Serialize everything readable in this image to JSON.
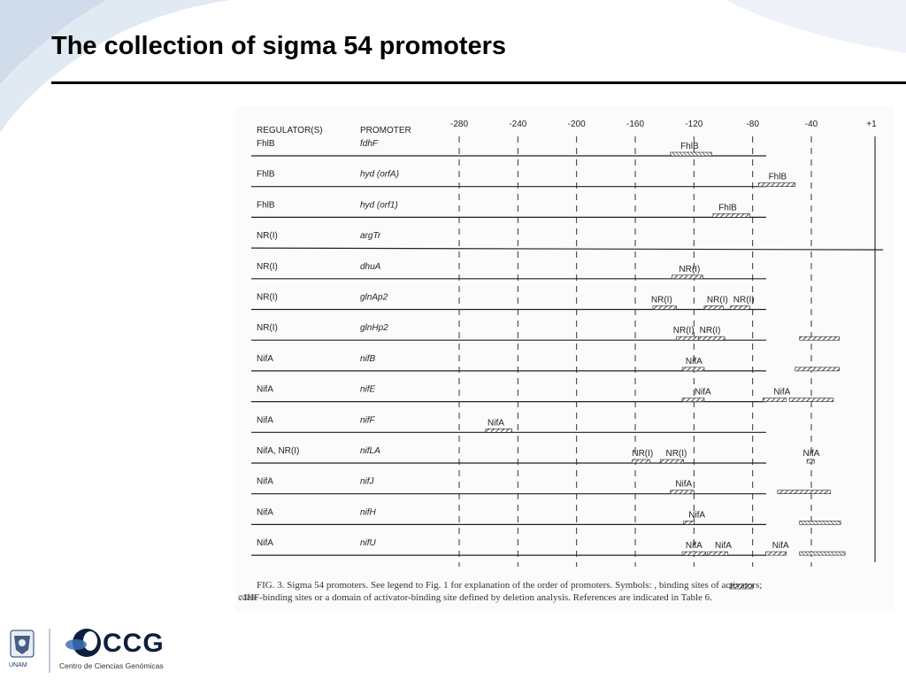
{
  "slide": {
    "title": "The collection of sigma 54 promoters",
    "background_accent": "#d6e0ee"
  },
  "figure": {
    "header": {
      "regulator": "REGULATOR(S)",
      "promoter": "PROMOTER"
    },
    "positions": [
      "-280",
      "-240",
      "-200",
      "-160",
      "-120",
      "-80",
      "-40",
      "+1"
    ],
    "rows": [
      {
        "regulator": "FhlB",
        "promoter": "fdhF",
        "marks": [
          {
            "label": "FhlB",
            "pos": -123,
            "start": -136,
            "end": -108,
            "style": "ihf"
          }
        ]
      },
      {
        "regulator": "FhlB",
        "promoter": "hyd  (orfA)",
        "marks": [
          {
            "label": "FhlB",
            "pos": -63,
            "start": -76,
            "end": -51,
            "style": "activator"
          }
        ]
      },
      {
        "regulator": "FhlB",
        "promoter": "hyd  (orf1)",
        "marks": [
          {
            "label": "FhlB",
            "pos": -97,
            "start": -107,
            "end": -82,
            "style": "activator"
          }
        ]
      },
      {
        "regulator": "NR(I)",
        "promoter": "argTr",
        "marks": []
      },
      {
        "regulator": "NR(I)",
        "promoter": "dhuA",
        "marks": [
          {
            "label": "NR(I)",
            "pos": -123,
            "start": -135,
            "end": -114,
            "style": "activator"
          }
        ]
      },
      {
        "regulator": "NR(I)",
        "promoter": "glnAp2",
        "marks": [
          {
            "label": "NR(I)",
            "pos": -142,
            "start": -148,
            "end": -132,
            "style": "activator"
          },
          {
            "label": "NR(I)",
            "pos": -104,
            "start": -113,
            "end": -100,
            "style": "activator"
          },
          {
            "label": "NR(I)",
            "pos": -86,
            "start": -95,
            "end": -82,
            "style": "activator"
          }
        ]
      },
      {
        "regulator": "NR(I)",
        "promoter": "glnHp2",
        "marks": [
          {
            "label": "NR(I)",
            "pos": -127,
            "start": -132,
            "end": -117,
            "style": "activator"
          },
          {
            "label": "NR(I)",
            "pos": -109,
            "start": -117,
            "end": -99,
            "style": "activator"
          },
          {
            "label": "",
            "pos": -38,
            "start": -48,
            "end": -21,
            "style": "activator"
          }
        ]
      },
      {
        "regulator": "NifA",
        "promoter": "nifB",
        "marks": [
          {
            "label": "NifA",
            "pos": -120,
            "start": -128,
            "end": -113,
            "style": "activator"
          },
          {
            "label": "",
            "pos": -35,
            "start": -51,
            "end": -21,
            "style": "activator"
          }
        ]
      },
      {
        "regulator": "NifA",
        "promoter": "nifE",
        "marks": [
          {
            "label": "NifA",
            "pos": -114,
            "start": -128,
            "end": -113,
            "style": "activator"
          },
          {
            "label": "NifA",
            "pos": -60,
            "start": -73,
            "end": -57,
            "style": "activator"
          },
          {
            "label": "",
            "pos": -35,
            "start": -55,
            "end": -25,
            "style": "activator"
          }
        ]
      },
      {
        "regulator": "NifA",
        "promoter": "nifF",
        "marks": [
          {
            "label": "NifA",
            "pos": -255,
            "start": -262,
            "end": -244,
            "style": "activator"
          }
        ]
      },
      {
        "regulator": "NifA,   NR(I)",
        "promoter": "nifLA",
        "marks": [
          {
            "label": "NR(I)",
            "pos": -155,
            "start": -162,
            "end": -150,
            "style": "activator"
          },
          {
            "label": "NR(I)",
            "pos": -132,
            "start": -143,
            "end": -127,
            "style": "activator"
          },
          {
            "label": "NifA",
            "pos": -40,
            "start": -43,
            "end": -38,
            "style": "activator"
          }
        ]
      },
      {
        "regulator": "NifA",
        "promoter": "nifJ",
        "marks": [
          {
            "label": "NifA",
            "pos": -127,
            "start": -136,
            "end": -120,
            "style": "activator"
          },
          {
            "label": "",
            "pos": -48,
            "start": -63,
            "end": -27,
            "style": "activator"
          }
        ]
      },
      {
        "regulator": "NifA",
        "promoter": "nifH",
        "marks": [
          {
            "label": "NifA",
            "pos": -118,
            "start": -127,
            "end": -120,
            "style": "activator"
          },
          {
            "label": "",
            "pos": -37,
            "start": -48,
            "end": -20,
            "style": "ihf"
          }
        ]
      },
      {
        "regulator": "NifA",
        "promoter": "nifU",
        "marks": [
          {
            "label": "NifA",
            "pos": -120,
            "start": -128,
            "end": -112,
            "style": "activator"
          },
          {
            "label": "NifA",
            "pos": -100,
            "start": -111,
            "end": -97,
            "style": "activator"
          },
          {
            "label": "NifA",
            "pos": -61,
            "start": -71,
            "end": -57,
            "style": "activator"
          },
          {
            "label": "",
            "pos": -40,
            "start": -48,
            "end": -17,
            "style": "ihf"
          }
        ]
      }
    ],
    "caption_line1": "FIG. 3.  Sigma 54 promoters. See legend to Fig. 1 for explanation of the order of promoters. Symbols:          , binding sites of activators;",
    "caption_line2": "         . IHF-binding sites or a domain of activator-binding site defined by deletion analysis. References are indicated in Table 6."
  },
  "footer": {
    "unam_label": "UNAM",
    "ccg_label": "CCG",
    "ccg_subtitle": "Centro de Ciencias Genómicas"
  }
}
